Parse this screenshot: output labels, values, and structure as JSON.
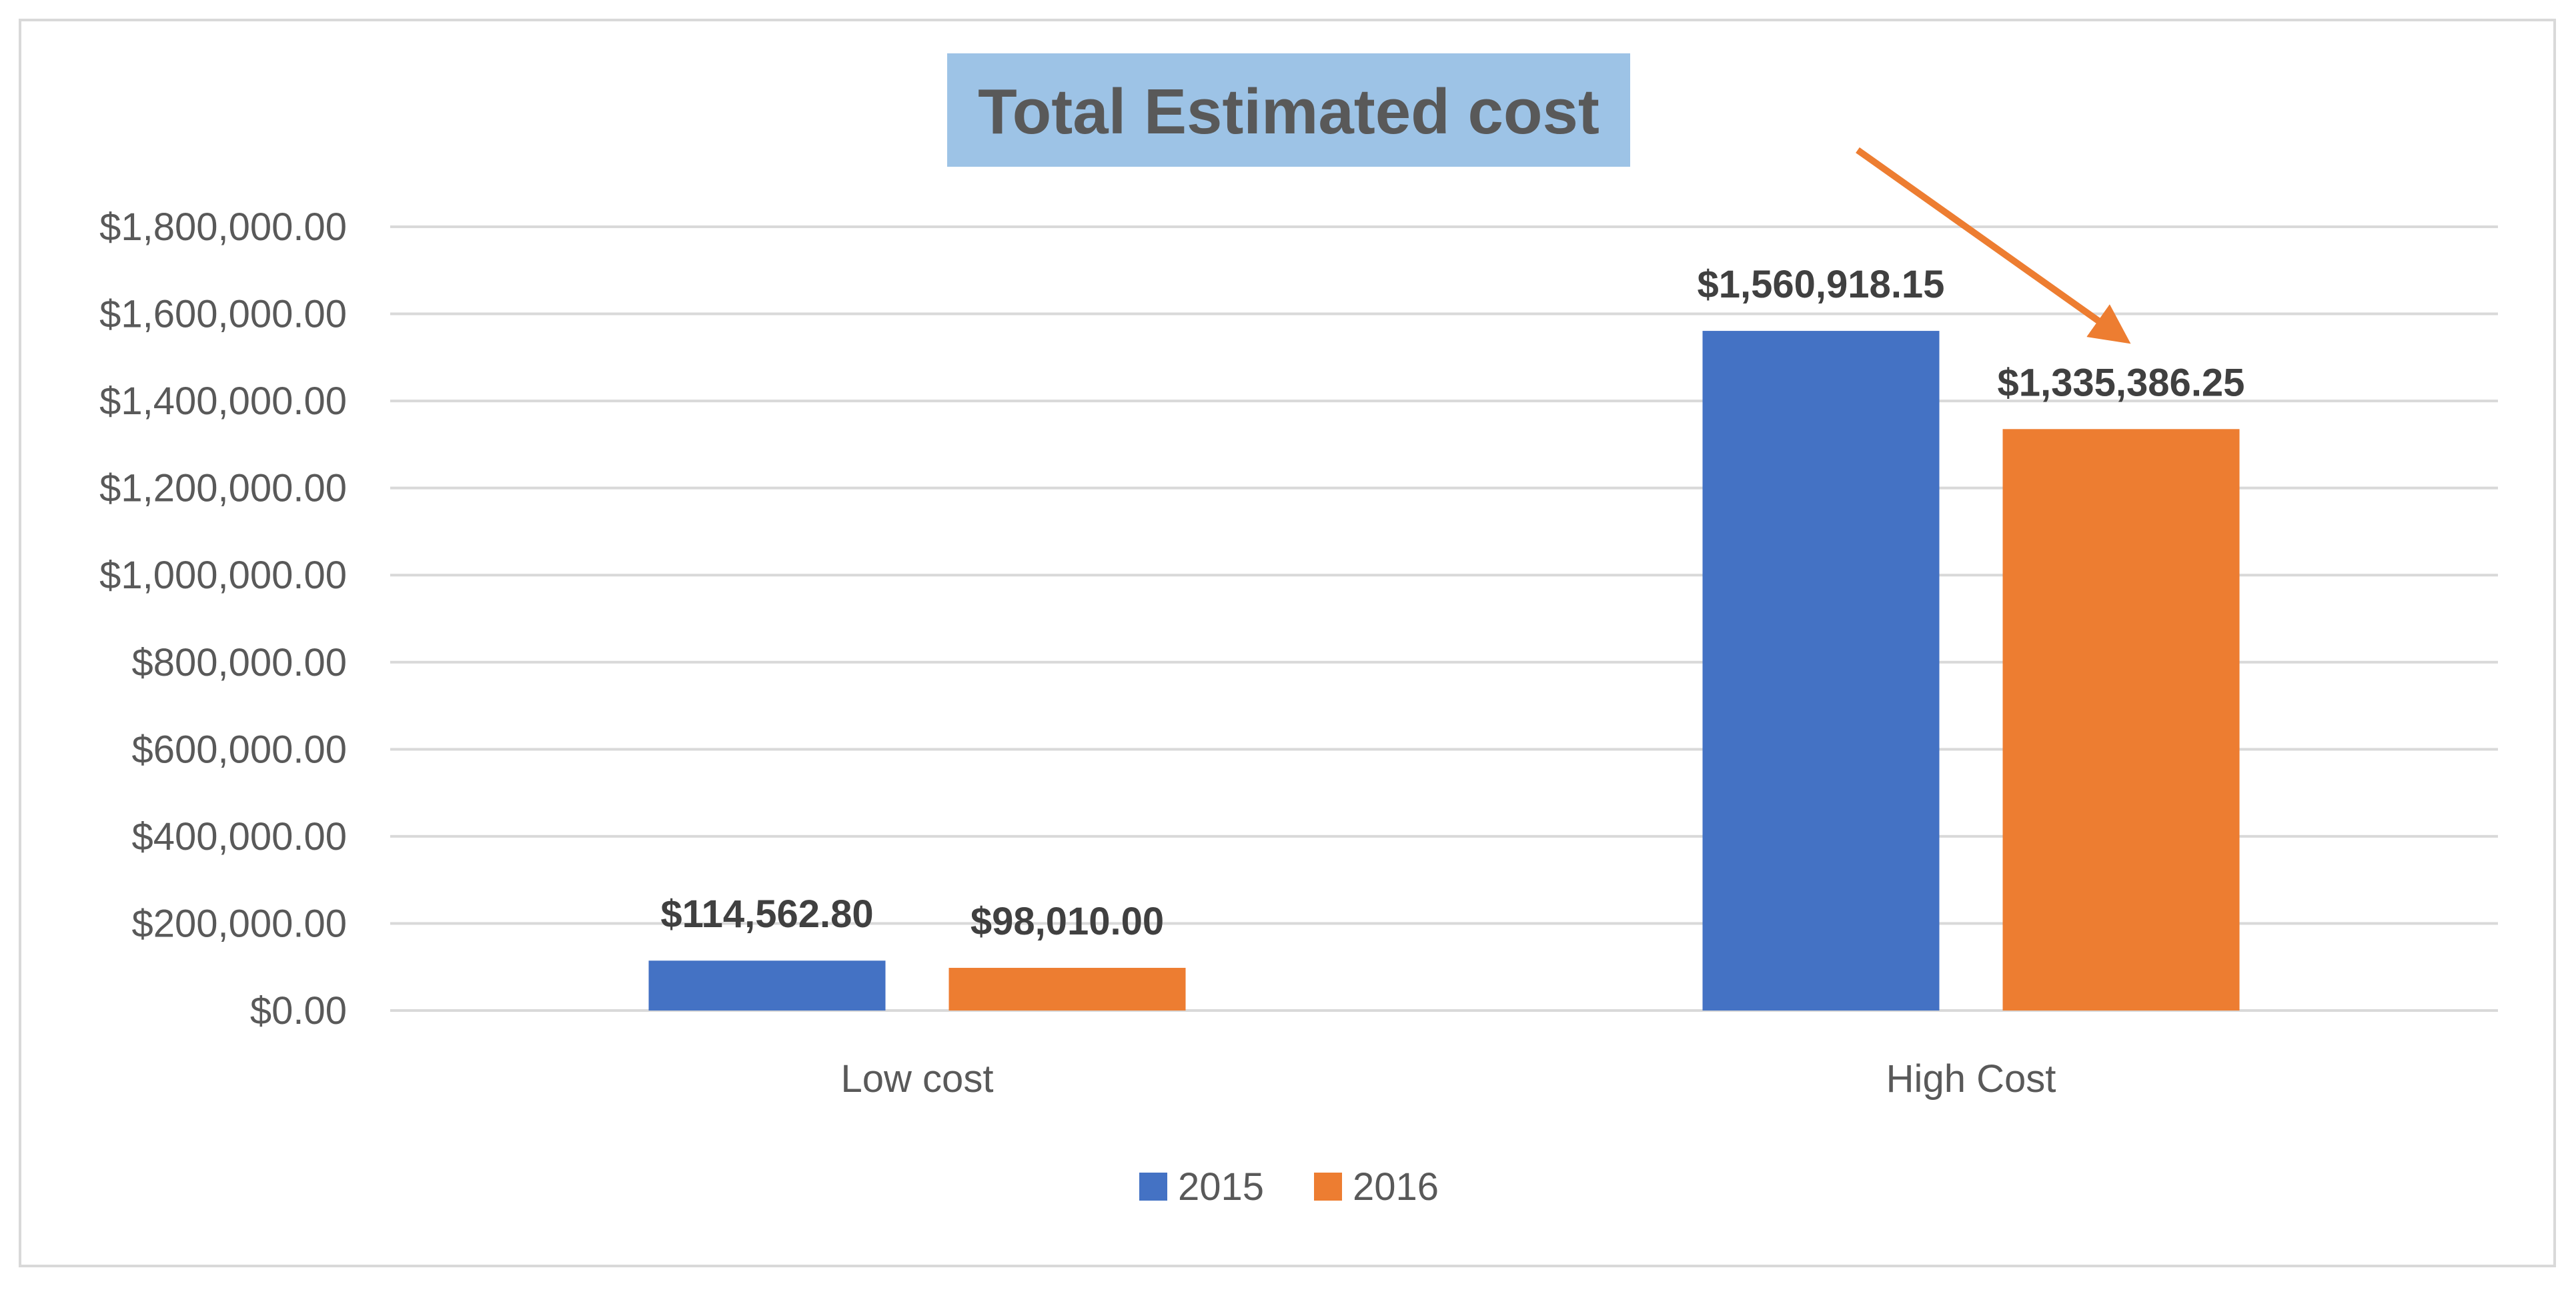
{
  "chart_data": {
    "type": "bar",
    "title": "Total Estimated cost",
    "categories": [
      "Low cost",
      "High Cost"
    ],
    "series": [
      {
        "name": "2015",
        "values": [
          114562.8,
          1560918.15
        ],
        "labels": [
          "$114,562.80",
          "$1,560,918.15"
        ],
        "color": "#4472C4"
      },
      {
        "name": "2016",
        "values": [
          98010.0,
          1335386.25
        ],
        "labels": [
          "$98,010.00",
          "$1,335,386.25"
        ],
        "color": "#ED7D31"
      }
    ],
    "ylim": [
      0,
      1800000
    ],
    "yticks": [
      0,
      200000,
      400000,
      600000,
      800000,
      1000000,
      1200000,
      1400000,
      1600000,
      1800000
    ],
    "ytick_labels": [
      "$0.00",
      "$200,000.00",
      "$400,000.00",
      "$600,000.00",
      "$800,000.00",
      "$1,000,000.00",
      "$1,200,000.00",
      "$1,400,000.00",
      "$1,600,000.00",
      "$1,800,000.00"
    ],
    "xlabel": "",
    "ylabel": "",
    "grid": true,
    "legend_position": "bottom",
    "title_background": "#9DC3E6",
    "gridline_color": "#D9D9D9",
    "annotation": {
      "type": "arrow",
      "color": "#ED7D31",
      "target": "High Cost 2016"
    }
  }
}
